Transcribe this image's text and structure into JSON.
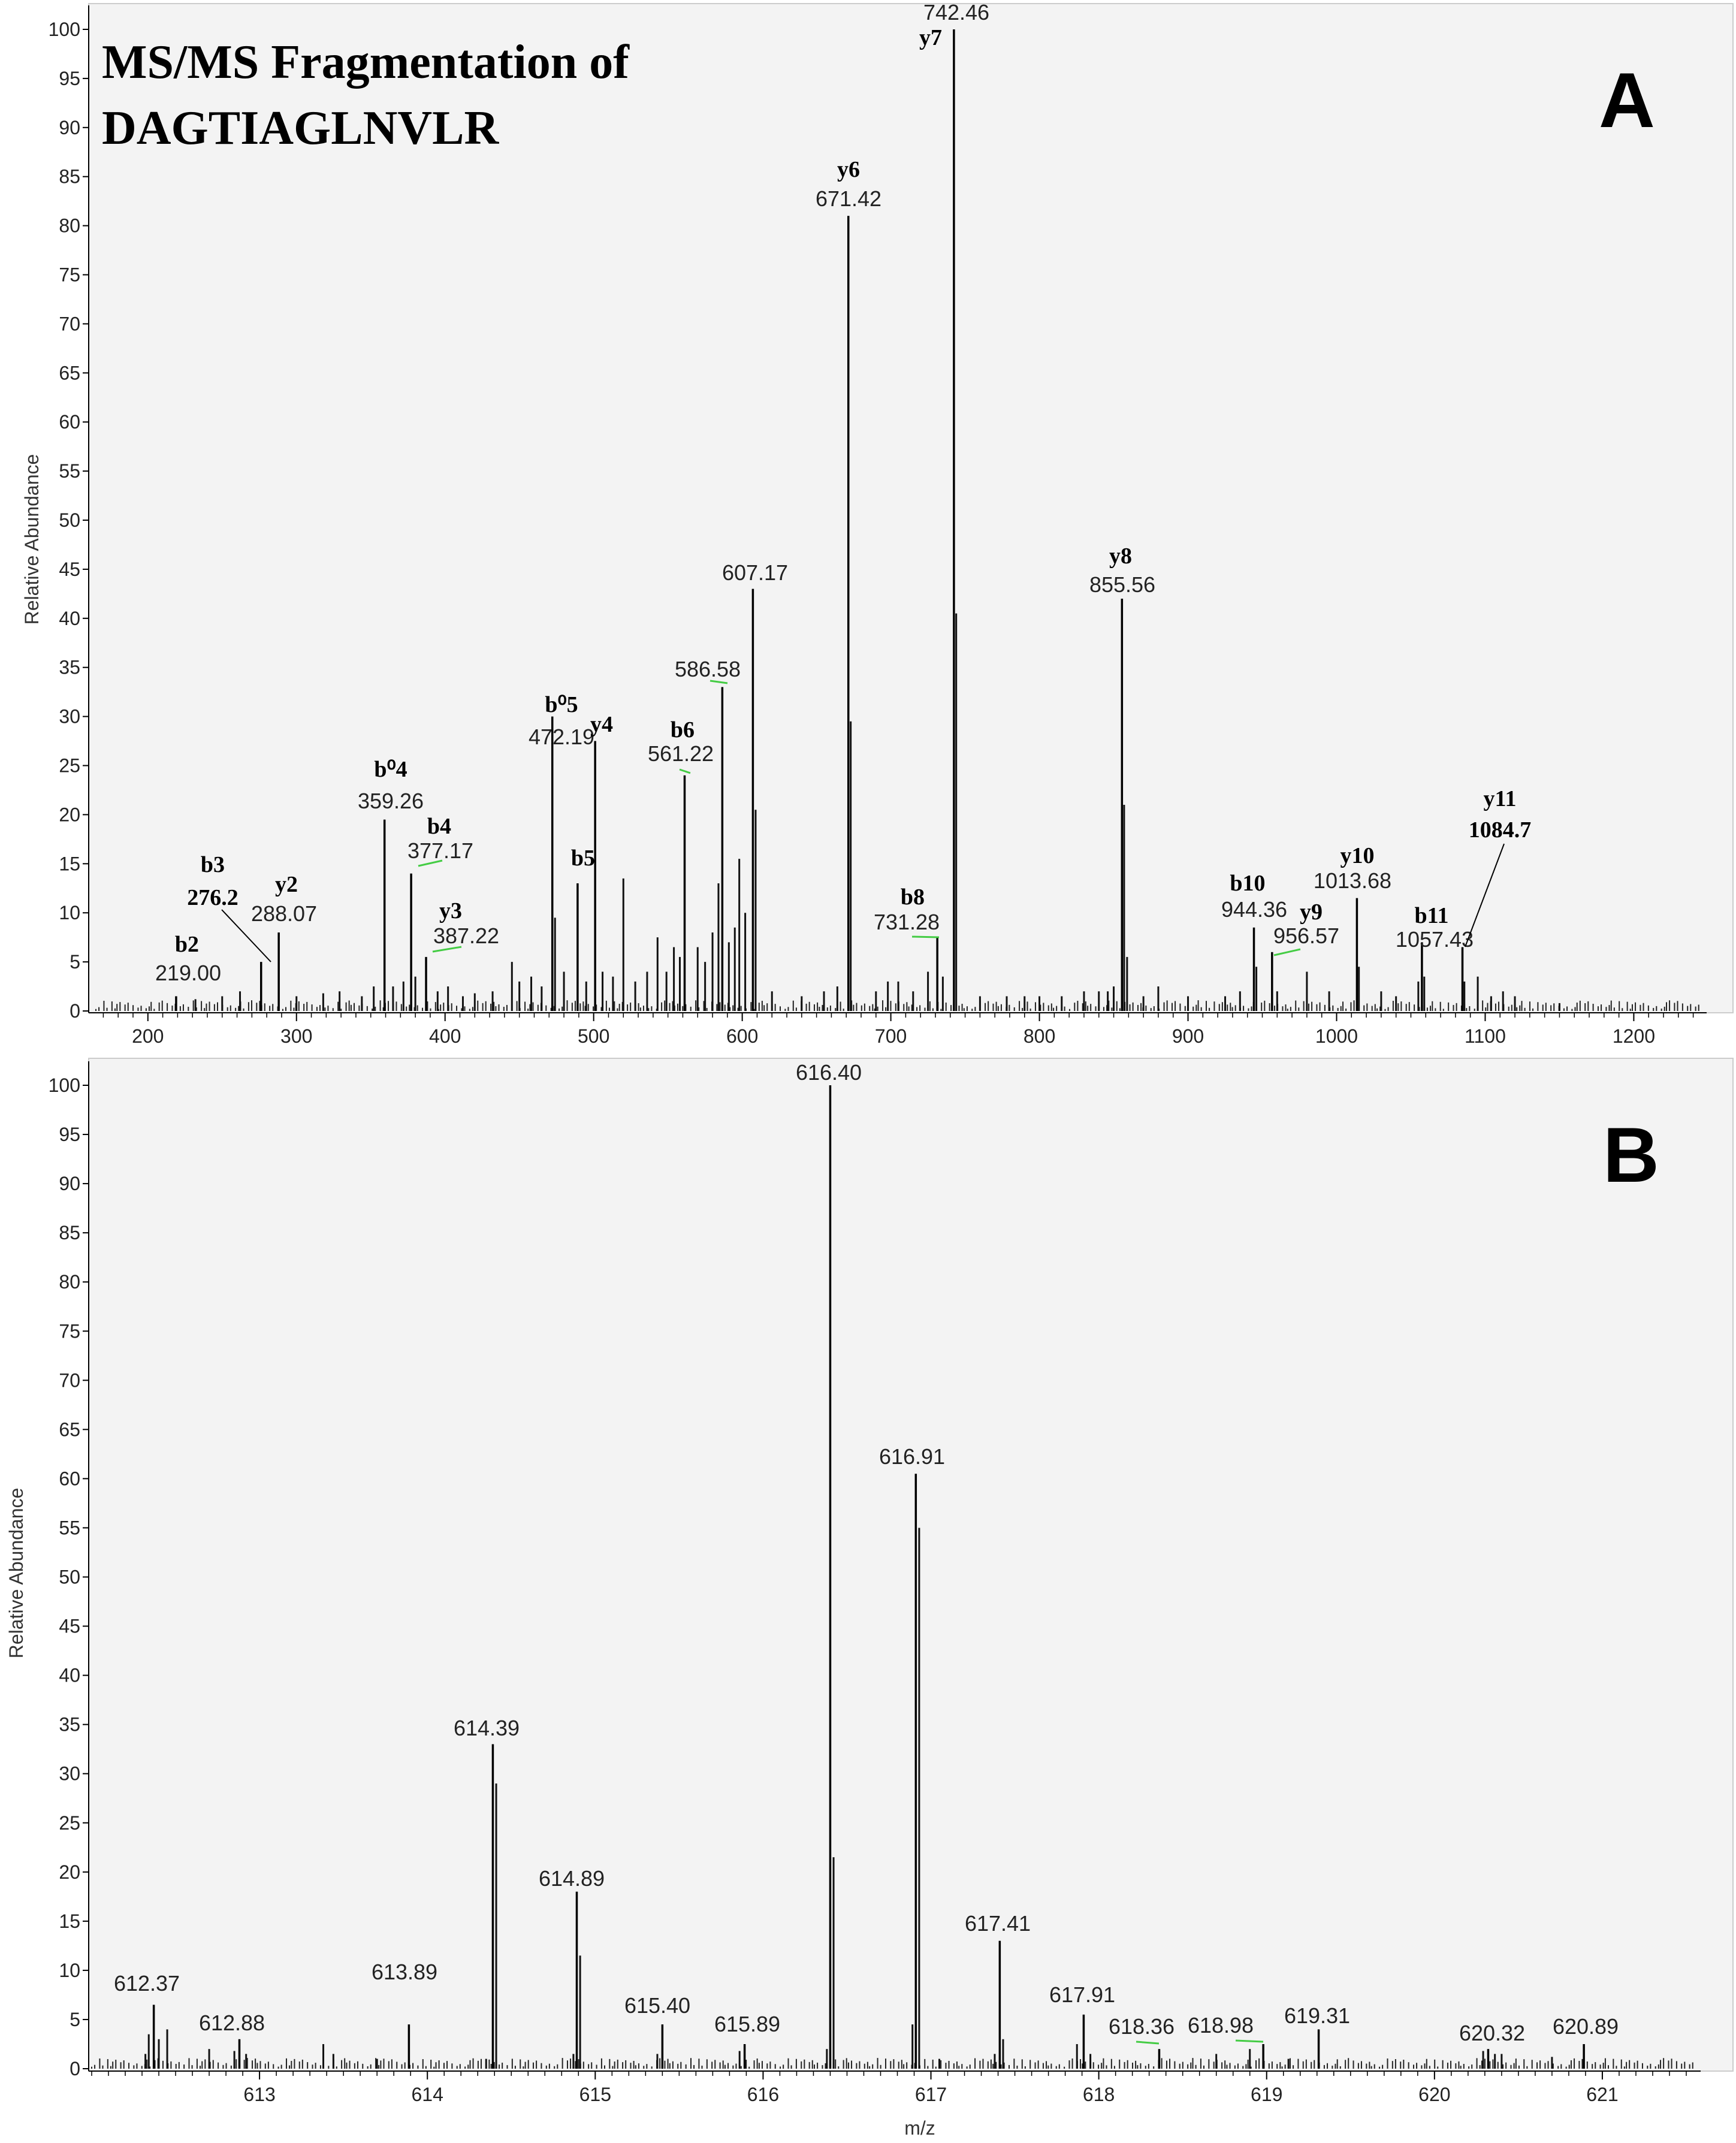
{
  "chart_data": [
    {
      "panel": "A",
      "type": "bar",
      "title": "MS/MS Fragmentation of DAGTIAGLNVLR",
      "panel_label": "A",
      "xlabel": "",
      "ylabel": "Relative Abundance",
      "xlim": [
        165,
        1245
      ],
      "ylim": [
        0,
        100
      ],
      "xticks": [
        200,
        300,
        400,
        500,
        600,
        700,
        800,
        900,
        1000,
        1100,
        1200
      ],
      "yticks": [
        0,
        5,
        10,
        15,
        20,
        25,
        30,
        35,
        40,
        45,
        50,
        55,
        60,
        65,
        70,
        75,
        80,
        85,
        90,
        95,
        100
      ],
      "grid": false,
      "peaks": [
        {
          "mz": 219.0,
          "y": 1.5,
          "label": "219.00",
          "ion": "b2"
        },
        {
          "mz": 276.2,
          "y": 5.0,
          "label": "",
          "ion": "b3\n276.2"
        },
        {
          "mz": 288.07,
          "y": 8.0,
          "label": "288.07",
          "ion": "y2"
        },
        {
          "mz": 359.26,
          "y": 19.5,
          "label": "359.26",
          "ion": "b⁰4"
        },
        {
          "mz": 377.17,
          "y": 14.0,
          "label": "377.17",
          "ion": "b4"
        },
        {
          "mz": 387.22,
          "y": 5.5,
          "label": "387.22",
          "ion": "y3"
        },
        {
          "mz": 472.19,
          "y": 30.0,
          "label": "472.19",
          "ion": "b⁰5"
        },
        {
          "mz": 489.2,
          "y": 13.0,
          "label": "",
          "ion": "b5"
        },
        {
          "mz": 501.0,
          "y": 27.5,
          "label": "",
          "ion": "y4"
        },
        {
          "mz": 561.22,
          "y": 24.0,
          "label": "561.22",
          "ion": "b6"
        },
        {
          "mz": 586.58,
          "y": 33.0,
          "label": "586.58",
          "ion": ""
        },
        {
          "mz": 607.17,
          "y": 43.0,
          "label": "607.17",
          "ion": ""
        },
        {
          "mz": 671.42,
          "y": 81.0,
          "label": "671.42",
          "ion": "y6"
        },
        {
          "mz": 731.28,
          "y": 7.5,
          "label": "731.28",
          "ion": "b8"
        },
        {
          "mz": 742.46,
          "y": 100.0,
          "label": "742.46",
          "ion": "y7"
        },
        {
          "mz": 855.56,
          "y": 42.0,
          "label": "855.56",
          "ion": "y8"
        },
        {
          "mz": 944.36,
          "y": 8.5,
          "label": "944.36",
          "ion": "b10"
        },
        {
          "mz": 956.57,
          "y": 6.0,
          "label": "956.57",
          "ion": "y9"
        },
        {
          "mz": 1013.68,
          "y": 11.5,
          "label": "1013.68",
          "ion": "y10"
        },
        {
          "mz": 1057.43,
          "y": 7.0,
          "label": "1057.43",
          "ion": "b11"
        },
        {
          "mz": 1084.7,
          "y": 6.5,
          "label": "",
          "ion": "y11\n1084.7"
        }
      ],
      "minor_peaks": [
        [
          232,
          1.2
        ],
        [
          250,
          1.5
        ],
        [
          262,
          2.0
        ],
        [
          300,
          1.5
        ],
        [
          318,
          1.8
        ],
        [
          329,
          2.0
        ],
        [
          344,
          1.5
        ],
        [
          352,
          2.5
        ],
        [
          365,
          2.5
        ],
        [
          372,
          3.0
        ],
        [
          380,
          3.5
        ],
        [
          395,
          2.0
        ],
        [
          402,
          2.5
        ],
        [
          412,
          1.5
        ],
        [
          420,
          1.8
        ],
        [
          432,
          2.0
        ],
        [
          445,
          5.0
        ],
        [
          450,
          3.0
        ],
        [
          458,
          3.5
        ],
        [
          465,
          2.5
        ],
        [
          474,
          9.5
        ],
        [
          480,
          4.0
        ],
        [
          495,
          3.0
        ],
        [
          506,
          4.0
        ],
        [
          513,
          3.5
        ],
        [
          520,
          13.5
        ],
        [
          528,
          3.0
        ],
        [
          536,
          4.0
        ],
        [
          543,
          7.5
        ],
        [
          549,
          4.0
        ],
        [
          554,
          6.5
        ],
        [
          558,
          5.5
        ],
        [
          570,
          6.5
        ],
        [
          575,
          5.0
        ],
        [
          580,
          8.0
        ],
        [
          584,
          13.0
        ],
        [
          591,
          7.0
        ],
        [
          595,
          8.5
        ],
        [
          598,
          15.5
        ],
        [
          602,
          10.0
        ],
        [
          609,
          20.5
        ],
        [
          620,
          2.0
        ],
        [
          640,
          1.5
        ],
        [
          655,
          2.0
        ],
        [
          664,
          2.5
        ],
        [
          673,
          29.5
        ],
        [
          690,
          2.0
        ],
        [
          698,
          3.0
        ],
        [
          705,
          3.0
        ],
        [
          715,
          2.0
        ],
        [
          725,
          4.0
        ],
        [
          735,
          3.5
        ],
        [
          744,
          40.5
        ],
        [
          760,
          1.5
        ],
        [
          778,
          1.5
        ],
        [
          790,
          1.5
        ],
        [
          800,
          1.5
        ],
        [
          815,
          1.5
        ],
        [
          830,
          2.0
        ],
        [
          840,
          2.0
        ],
        [
          846,
          2.0
        ],
        [
          850,
          2.5
        ],
        [
          857,
          21.0
        ],
        [
          859,
          5.5
        ],
        [
          870,
          1.5
        ],
        [
          880,
          2.5
        ],
        [
          900,
          1.5
        ],
        [
          925,
          1.5
        ],
        [
          935,
          2.0
        ],
        [
          946,
          4.5
        ],
        [
          960,
          2.0
        ],
        [
          980,
          4.0
        ],
        [
          995,
          2.0
        ],
        [
          1015,
          4.5
        ],
        [
          1030,
          2.0
        ],
        [
          1040,
          1.5
        ],
        [
          1055,
          3.0
        ],
        [
          1059,
          3.5
        ],
        [
          1086,
          3.0
        ],
        [
          1095,
          3.5
        ],
        [
          1104,
          1.5
        ],
        [
          1112,
          2.0
        ],
        [
          1120,
          1.5
        ],
        [
          1150,
          0.8
        ]
      ]
    },
    {
      "panel": "B",
      "type": "bar",
      "title": "",
      "panel_label": "B",
      "xlabel": "m/z",
      "ylabel": "Relative Abundance",
      "xlim": [
        612.0,
        621.55
      ],
      "ylim": [
        0,
        100
      ],
      "xticks": [
        613,
        614,
        615,
        616,
        617,
        618,
        619,
        620,
        621
      ],
      "yticks": [
        0,
        5,
        10,
        15,
        20,
        25,
        30,
        35,
        40,
        45,
        50,
        55,
        60,
        65,
        70,
        75,
        80,
        85,
        90,
        95,
        100
      ],
      "grid": false,
      "peaks": [
        {
          "mz": 612.37,
          "y": 6.5,
          "label": "612.37"
        },
        {
          "mz": 612.88,
          "y": 3.0,
          "label": "612.88"
        },
        {
          "mz": 613.89,
          "y": 4.5,
          "label": "613.89"
        },
        {
          "mz": 614.39,
          "y": 33.0,
          "label": "614.39"
        },
        {
          "mz": 614.89,
          "y": 18.0,
          "label": "614.89"
        },
        {
          "mz": 615.4,
          "y": 4.5,
          "label": "615.40"
        },
        {
          "mz": 615.89,
          "y": 2.5,
          "label": "615.89"
        },
        {
          "mz": 616.4,
          "y": 100.0,
          "label": "616.40"
        },
        {
          "mz": 616.91,
          "y": 60.5,
          "label": "616.91"
        },
        {
          "mz": 617.41,
          "y": 13.0,
          "label": "617.41"
        },
        {
          "mz": 617.91,
          "y": 5.5,
          "label": "617.91"
        },
        {
          "mz": 618.36,
          "y": 2.0,
          "label": "618.36"
        },
        {
          "mz": 618.98,
          "y": 2.5,
          "label": "618.98"
        },
        {
          "mz": 619.31,
          "y": 4.0,
          "label": "619.31"
        },
        {
          "mz": 620.32,
          "y": 2.0,
          "label": "620.32"
        },
        {
          "mz": 620.89,
          "y": 2.5,
          "label": "620.89"
        }
      ],
      "minor_peaks": [
        [
          612.32,
          1.5
        ],
        [
          612.34,
          3.5
        ],
        [
          612.4,
          3.0
        ],
        [
          612.45,
          4.0
        ],
        [
          612.7,
          2.0
        ],
        [
          612.85,
          1.8
        ],
        [
          612.92,
          1.5
        ],
        [
          613.38,
          2.5
        ],
        [
          613.44,
          1.5
        ],
        [
          613.7,
          1.0
        ],
        [
          614.35,
          1.0
        ],
        [
          614.41,
          29.0
        ],
        [
          614.87,
          1.5
        ],
        [
          614.91,
          11.5
        ],
        [
          615.37,
          1.5
        ],
        [
          615.86,
          1.8
        ],
        [
          616.38,
          2.0
        ],
        [
          616.42,
          21.5
        ],
        [
          616.89,
          4.5
        ],
        [
          616.93,
          55.0
        ],
        [
          617.05,
          1.0
        ],
        [
          617.38,
          1.5
        ],
        [
          617.43,
          3.0
        ],
        [
          617.87,
          2.5
        ],
        [
          617.95,
          1.5
        ],
        [
          618.7,
          1.5
        ],
        [
          618.9,
          2.0
        ],
        [
          619.13,
          1.0
        ],
        [
          620.29,
          1.8
        ],
        [
          620.36,
          1.5
        ],
        [
          620.4,
          1.5
        ],
        [
          620.7,
          1.2
        ]
      ]
    }
  ]
}
